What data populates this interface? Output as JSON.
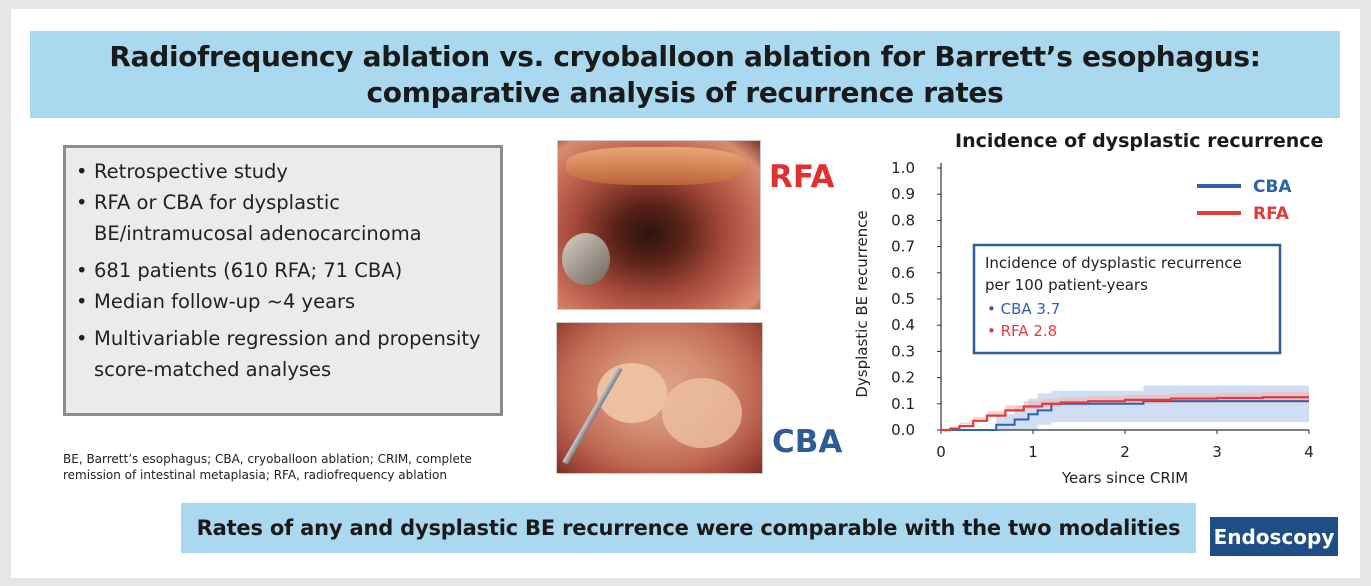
{
  "title": {
    "line1": "Radiofrequency ablation vs. cryoballoon ablation for Barrett’s esophagus:",
    "line2": "comparative analysis of recurrence rates"
  },
  "summary": {
    "bullets": [
      "Retrospective study",
      "RFA or CBA for dysplastic BE/intramucosal adenocarcinoma",
      "681 patients (610 RFA; 71 CBA)",
      "Median follow-up ~4 years",
      "Multivariable regression and propensity score-matched analyses"
    ]
  },
  "footnote": "BE, Barrett’s esophagus; CBA, cryoballoon ablation; CRIM, complete remission of intestinal metaplasia; RFA, radiofrequency ablation",
  "images": {
    "rfa_label": "RFA",
    "cba_label": "CBA"
  },
  "colors": {
    "cba": "#2e63a8",
    "rfa": "#e03c3c",
    "cba_band": "#a8c3e8",
    "rfa_band": "#f4b4b4",
    "accent_bar": "#a9d8ef",
    "journal": "#1f4e86"
  },
  "chart_data": {
    "type": "line",
    "title": "Incidence of dysplastic recurrence",
    "xlabel": "Years since CRIM",
    "ylabel": "Dysplastic BE recurrence",
    "xlim": [
      0,
      4
    ],
    "ylim": [
      0,
      1.0
    ],
    "x_ticks": [
      "0",
      "1",
      "2",
      "3",
      "4"
    ],
    "y_ticks": [
      "0.0",
      "0.1",
      "0.2",
      "0.3",
      "0.4",
      "0.5",
      "0.6",
      "0.7",
      "0.8",
      "0.9",
      "1.0"
    ],
    "legend": {
      "placement": "top-right",
      "entries": [
        "CBA",
        "RFA"
      ]
    },
    "annotation": {
      "heading": "Incidence of dysplastic recurrence per 100 patient-years",
      "items": [
        "CBA 3.7",
        "RFA 2.8"
      ]
    },
    "series": [
      {
        "name": "CBA",
        "x": [
          0,
          0.5,
          0.6,
          0.8,
          0.95,
          1.05,
          1.2,
          2.2,
          4
        ],
        "y": [
          0,
          0,
          0.02,
          0.04,
          0.06,
          0.075,
          0.1,
          0.11,
          0.11
        ],
        "ci_lower": [
          0,
          0,
          0,
          0,
          0,
          0,
          0.02,
          0.03,
          0.03
        ],
        "ci_upper": [
          0,
          0,
          0.06,
          0.09,
          0.12,
          0.14,
          0.15,
          0.17,
          0.17
        ]
      },
      {
        "name": "RFA",
        "x": [
          0,
          0.1,
          0.2,
          0.35,
          0.5,
          0.7,
          0.9,
          1.1,
          1.3,
          1.6,
          2.0,
          2.5,
          3.0,
          3.5,
          4
        ],
        "y": [
          0,
          0.005,
          0.015,
          0.035,
          0.055,
          0.075,
          0.09,
          0.1,
          0.105,
          0.11,
          0.115,
          0.12,
          0.122,
          0.125,
          0.125
        ],
        "ci_lower": [
          0,
          0,
          0.005,
          0.02,
          0.04,
          0.058,
          0.07,
          0.08,
          0.088,
          0.092,
          0.097,
          0.1,
          0.102,
          0.104,
          0.104
        ],
        "ci_upper": [
          0,
          0.012,
          0.028,
          0.05,
          0.072,
          0.095,
          0.11,
          0.12,
          0.125,
          0.13,
          0.135,
          0.14,
          0.142,
          0.145,
          0.145
        ]
      }
    ]
  },
  "bottom_message": "Rates of any and dysplastic BE recurrence were comparable with the two modalities",
  "journal": "Endoscopy"
}
